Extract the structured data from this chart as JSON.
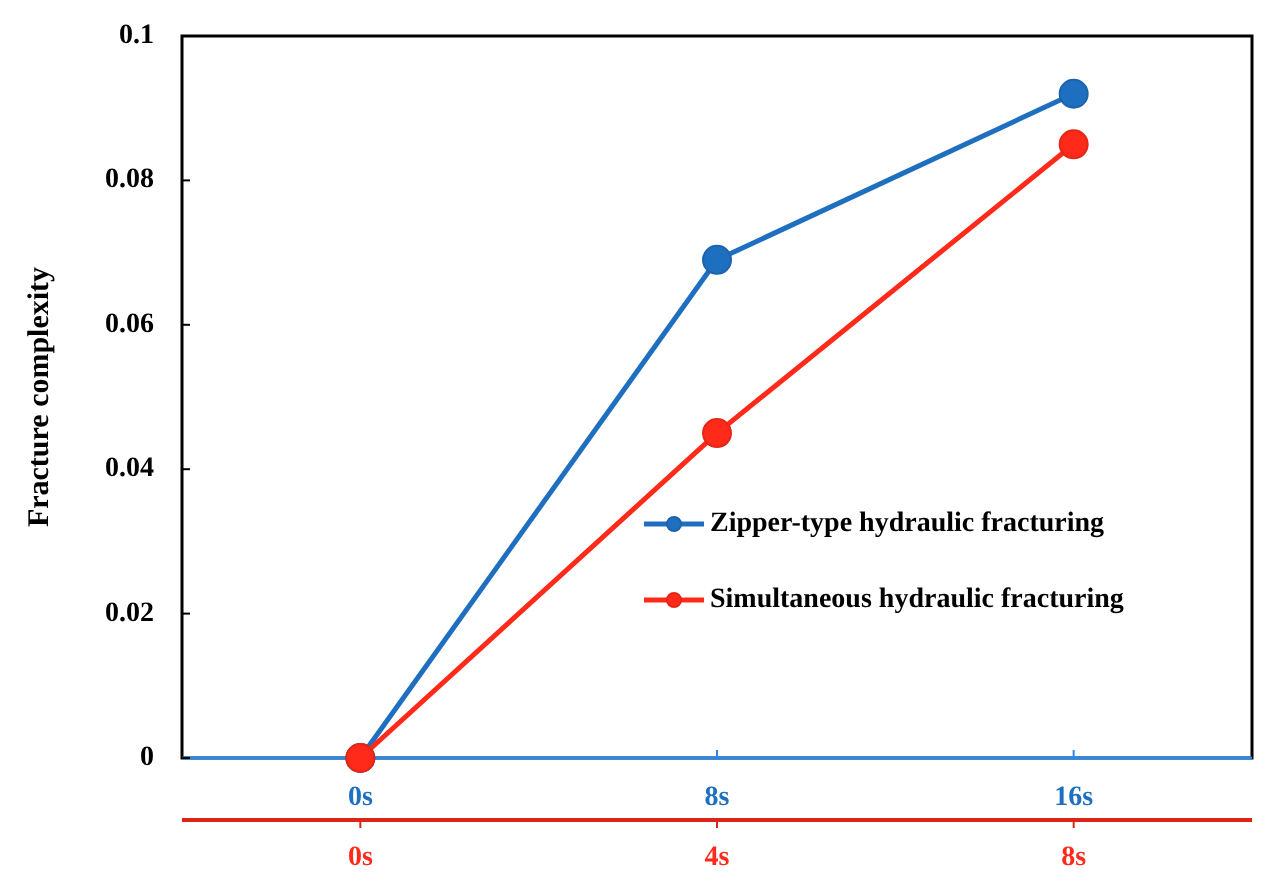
{
  "chart_data": {
    "type": "line",
    "ylabel": "Fracture complexity",
    "ylim": [
      0,
      0.1
    ],
    "yticks": [
      0,
      0.02,
      0.04,
      0.06,
      0.08,
      0.1
    ],
    "xlim": [
      -4,
      20
    ],
    "xticks": [
      {
        "value": 0,
        "label": "0s"
      },
      {
        "value": 8,
        "label": "8s"
      },
      {
        "value": 16,
        "label": "16s"
      }
    ],
    "x2lim": [
      -2,
      10
    ],
    "x2ticks": [
      {
        "value": 0,
        "label": "0s"
      },
      {
        "value": 4,
        "label": "4s"
      },
      {
        "value": 8,
        "label": "8s"
      }
    ],
    "series": [
      {
        "name": "Zipper-type hydraulic fracturing",
        "color": "#1f6fc0",
        "x": [
          0,
          8,
          16
        ],
        "values": [
          0,
          0.069,
          0.092
        ]
      },
      {
        "name": "Simultaneous hydraulic fracturing",
        "color": "#ff2a1a",
        "axis": "x2",
        "x": [
          0,
          4,
          8
        ],
        "values": [
          0,
          0.045,
          0.085
        ]
      }
    ],
    "marker": "circle",
    "line_style": "solid",
    "grid": false,
    "legend": "right"
  }
}
